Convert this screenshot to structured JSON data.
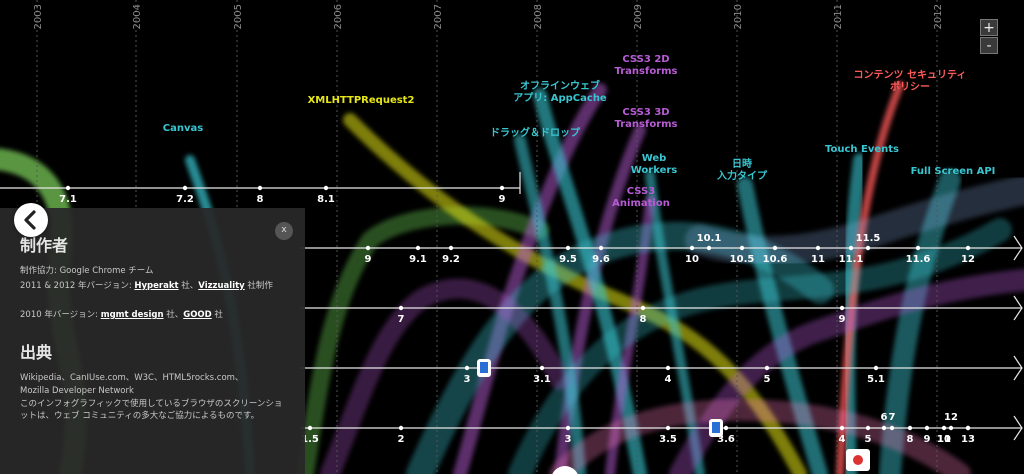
{
  "years": [
    "2003",
    "2004",
    "2005",
    "2006",
    "2007",
    "2008",
    "2009",
    "2010",
    "2011",
    "2012"
  ],
  "zoom": {
    "in_label": "+",
    "out_label": "-"
  },
  "tech_labels": [
    {
      "id": "canvas",
      "lines": [
        "Canvas"
      ],
      "color": "#39c6d1"
    },
    {
      "id": "xhr2",
      "lines": [
        "XMLHTTPRequest2"
      ],
      "color": "#e6e619"
    },
    {
      "id": "appcache",
      "lines": [
        "オフラインウェブ",
        "アプリ: AppCache"
      ],
      "color": "#39c6d1"
    },
    {
      "id": "dragdrop",
      "lines": [
        "ドラッグ＆ドロップ"
      ],
      "color": "#39c6d1"
    },
    {
      "id": "css3-2d",
      "lines": [
        "CSS3 2D",
        "Transforms"
      ],
      "color": "#b85cd6"
    },
    {
      "id": "css3-3d",
      "lines": [
        "CSS3 3D",
        "Transforms"
      ],
      "color": "#b85cd6"
    },
    {
      "id": "webworkers",
      "lines": [
        "Web",
        "Workers"
      ],
      "color": "#39c6d1"
    },
    {
      "id": "css3-anim",
      "lines": [
        "CSS3",
        "Animation"
      ],
      "color": "#b85cd6"
    },
    {
      "id": "datetime",
      "lines": [
        "日時",
        "入力タイプ"
      ],
      "color": "#39c6d1"
    },
    {
      "id": "touch",
      "lines": [
        "Touch Events"
      ],
      "color": "#39c6d1"
    },
    {
      "id": "csp",
      "lines": [
        "コンテンツ セキュリティ",
        "ポリシー"
      ],
      "color": "#ff5a5a"
    },
    {
      "id": "fullscreen",
      "lines": [
        "Full Screen API"
      ],
      "color": "#39c6d1"
    }
  ],
  "timelines": [
    {
      "id": "ie",
      "versions": [
        "7.1",
        "7.2",
        "8",
        "8.1",
        "9"
      ]
    },
    {
      "id": "chrome",
      "versions": [
        "9",
        "9.1",
        "9.2",
        "9.5",
        "9.6",
        "10",
        "10.1",
        "10.5",
        "10.6",
        "11",
        "11.1",
        "11.5",
        "11.6",
        "12"
      ]
    },
    {
      "id": "firefox",
      "versions": [
        "7",
        "8",
        "9"
      ]
    },
    {
      "id": "safari",
      "versions": [
        "3",
        "3.1",
        "4",
        "5",
        "5.1"
      ]
    },
    {
      "id": "opera",
      "versions": [
        "1.5",
        "2",
        "3",
        "3.5",
        "3.6",
        "4",
        "5",
        "6",
        "7",
        "8",
        "9",
        "10",
        "11",
        "12",
        "13"
      ]
    }
  ],
  "panel": {
    "credits_heading": "制作者",
    "credit_line1": "制作協力: Google Chrome チーム",
    "credit_line2_prefix": "2011 & 2012 年バージョン: ",
    "hyperakt": "Hyperakt",
    "credit_line2_mid": " 社、",
    "vizzuality": "Vizzuality",
    "credit_line2_suffix": " 社制作",
    "credit_line3_prefix": "2010 年バージョン: ",
    "mgmt": "mgmt design",
    "credit_line3_mid": " 社、",
    "good": "GOOD",
    "credit_line3_suffix": " 社",
    "sources_heading": "出典",
    "sources_line1": "Wikipedia、CanIUse.com、W3C、HTML5rocks.com、",
    "sources_line2": "Mozilla Developer Network",
    "sources_line3": "このインフォグラフィックで使用しているブラウザのスクリーンショットは、ウェブ コミュニティの多大なご協力によるものです。",
    "close_label": "x"
  }
}
